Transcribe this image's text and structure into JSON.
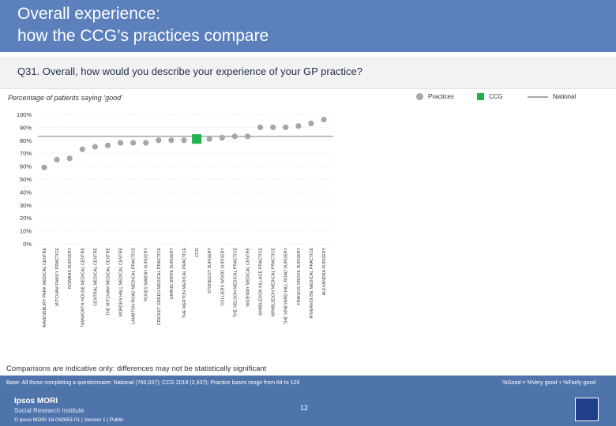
{
  "header": {
    "title": "Overall experience:\nhow the CCG’s practices compare"
  },
  "question": "Q31. Overall, how would you describe your experience of your GP practice?",
  "subtitle": "Percentage of patients saying ‘good’",
  "legend": {
    "practices": "Practices",
    "ccg": "CCG",
    "national": "National"
  },
  "colors": {
    "practice": "#a6a6a6",
    "ccg": "#22b14c",
    "national": "#a6a6a6",
    "header": "#5b80bb",
    "footer": "#4f74ac"
  },
  "chart_data": {
    "type": "scatter",
    "ylim": [
      0,
      100
    ],
    "yticks": [
      "0%",
      "10%",
      "20%",
      "30%",
      "40%",
      "50%",
      "60%",
      "70%",
      "80%",
      "90%",
      "100%"
    ],
    "national_value": 83,
    "categories": [
      "RAVENSBURY PARK MEDICAL CENTRE",
      "MITCHAM FAMILY PRACTICE",
      "ROWANS SURGERY",
      "TAMWORTH HOUSE MEDICAL CENTRE",
      "CENTRAL MEDICAL CENTRE",
      "THE MITCHAM MEDICAL CENTRE",
      "MORDEN HALL MEDICAL CENTRE",
      "LAMBTON ROAD MEDICAL PRACTICE",
      "ROSES MARSH SURGERY",
      "CRICKET GREEN MEDICAL PRACTICE",
      "GRAND DRIVE SURGERY",
      "THE MERTON MEDICAL PRACTICE",
      "CCG",
      "STONECOT SURGERY",
      "COLLIERS WOOD SURGERY",
      "THE NELSON MEDICAL PRACTICE",
      "WIDEWAY MEDICAL CENTRE",
      "WIMBLEDON VILLAGE PRACTICE",
      "WIMBLEDON MEDICAL PRACTICE",
      "THE VINEYARD HILL ROAD SURGERY",
      "FRANCIS GROVE SURGERY",
      "RIVERHOUSE MEDICAL PRACTICE",
      "ALEXANDRA SURGERY"
    ],
    "values": [
      59,
      65,
      66,
      73,
      75,
      76,
      78,
      78,
      78,
      80,
      80,
      80,
      81,
      81,
      82,
      83,
      83,
      90,
      90,
      90,
      91,
      93,
      96
    ],
    "ccg_index": 12
  },
  "comparisons_note": "Comparisons are indicative only: differences may not be statistically significant",
  "footer": {
    "base": "Base: All those completing a questionnaire: National (760,037); CCG 2019 (2,437); Practice bases range from 84 to 129",
    "definition": "%Good = %Very good + %Fairly good",
    "page": "12",
    "brand": "Ipsos MORI",
    "brand_sub": "Social Research Institute",
    "copyright": "© Ipsos MORI     18-042653-01 | Version 1 | Public"
  }
}
